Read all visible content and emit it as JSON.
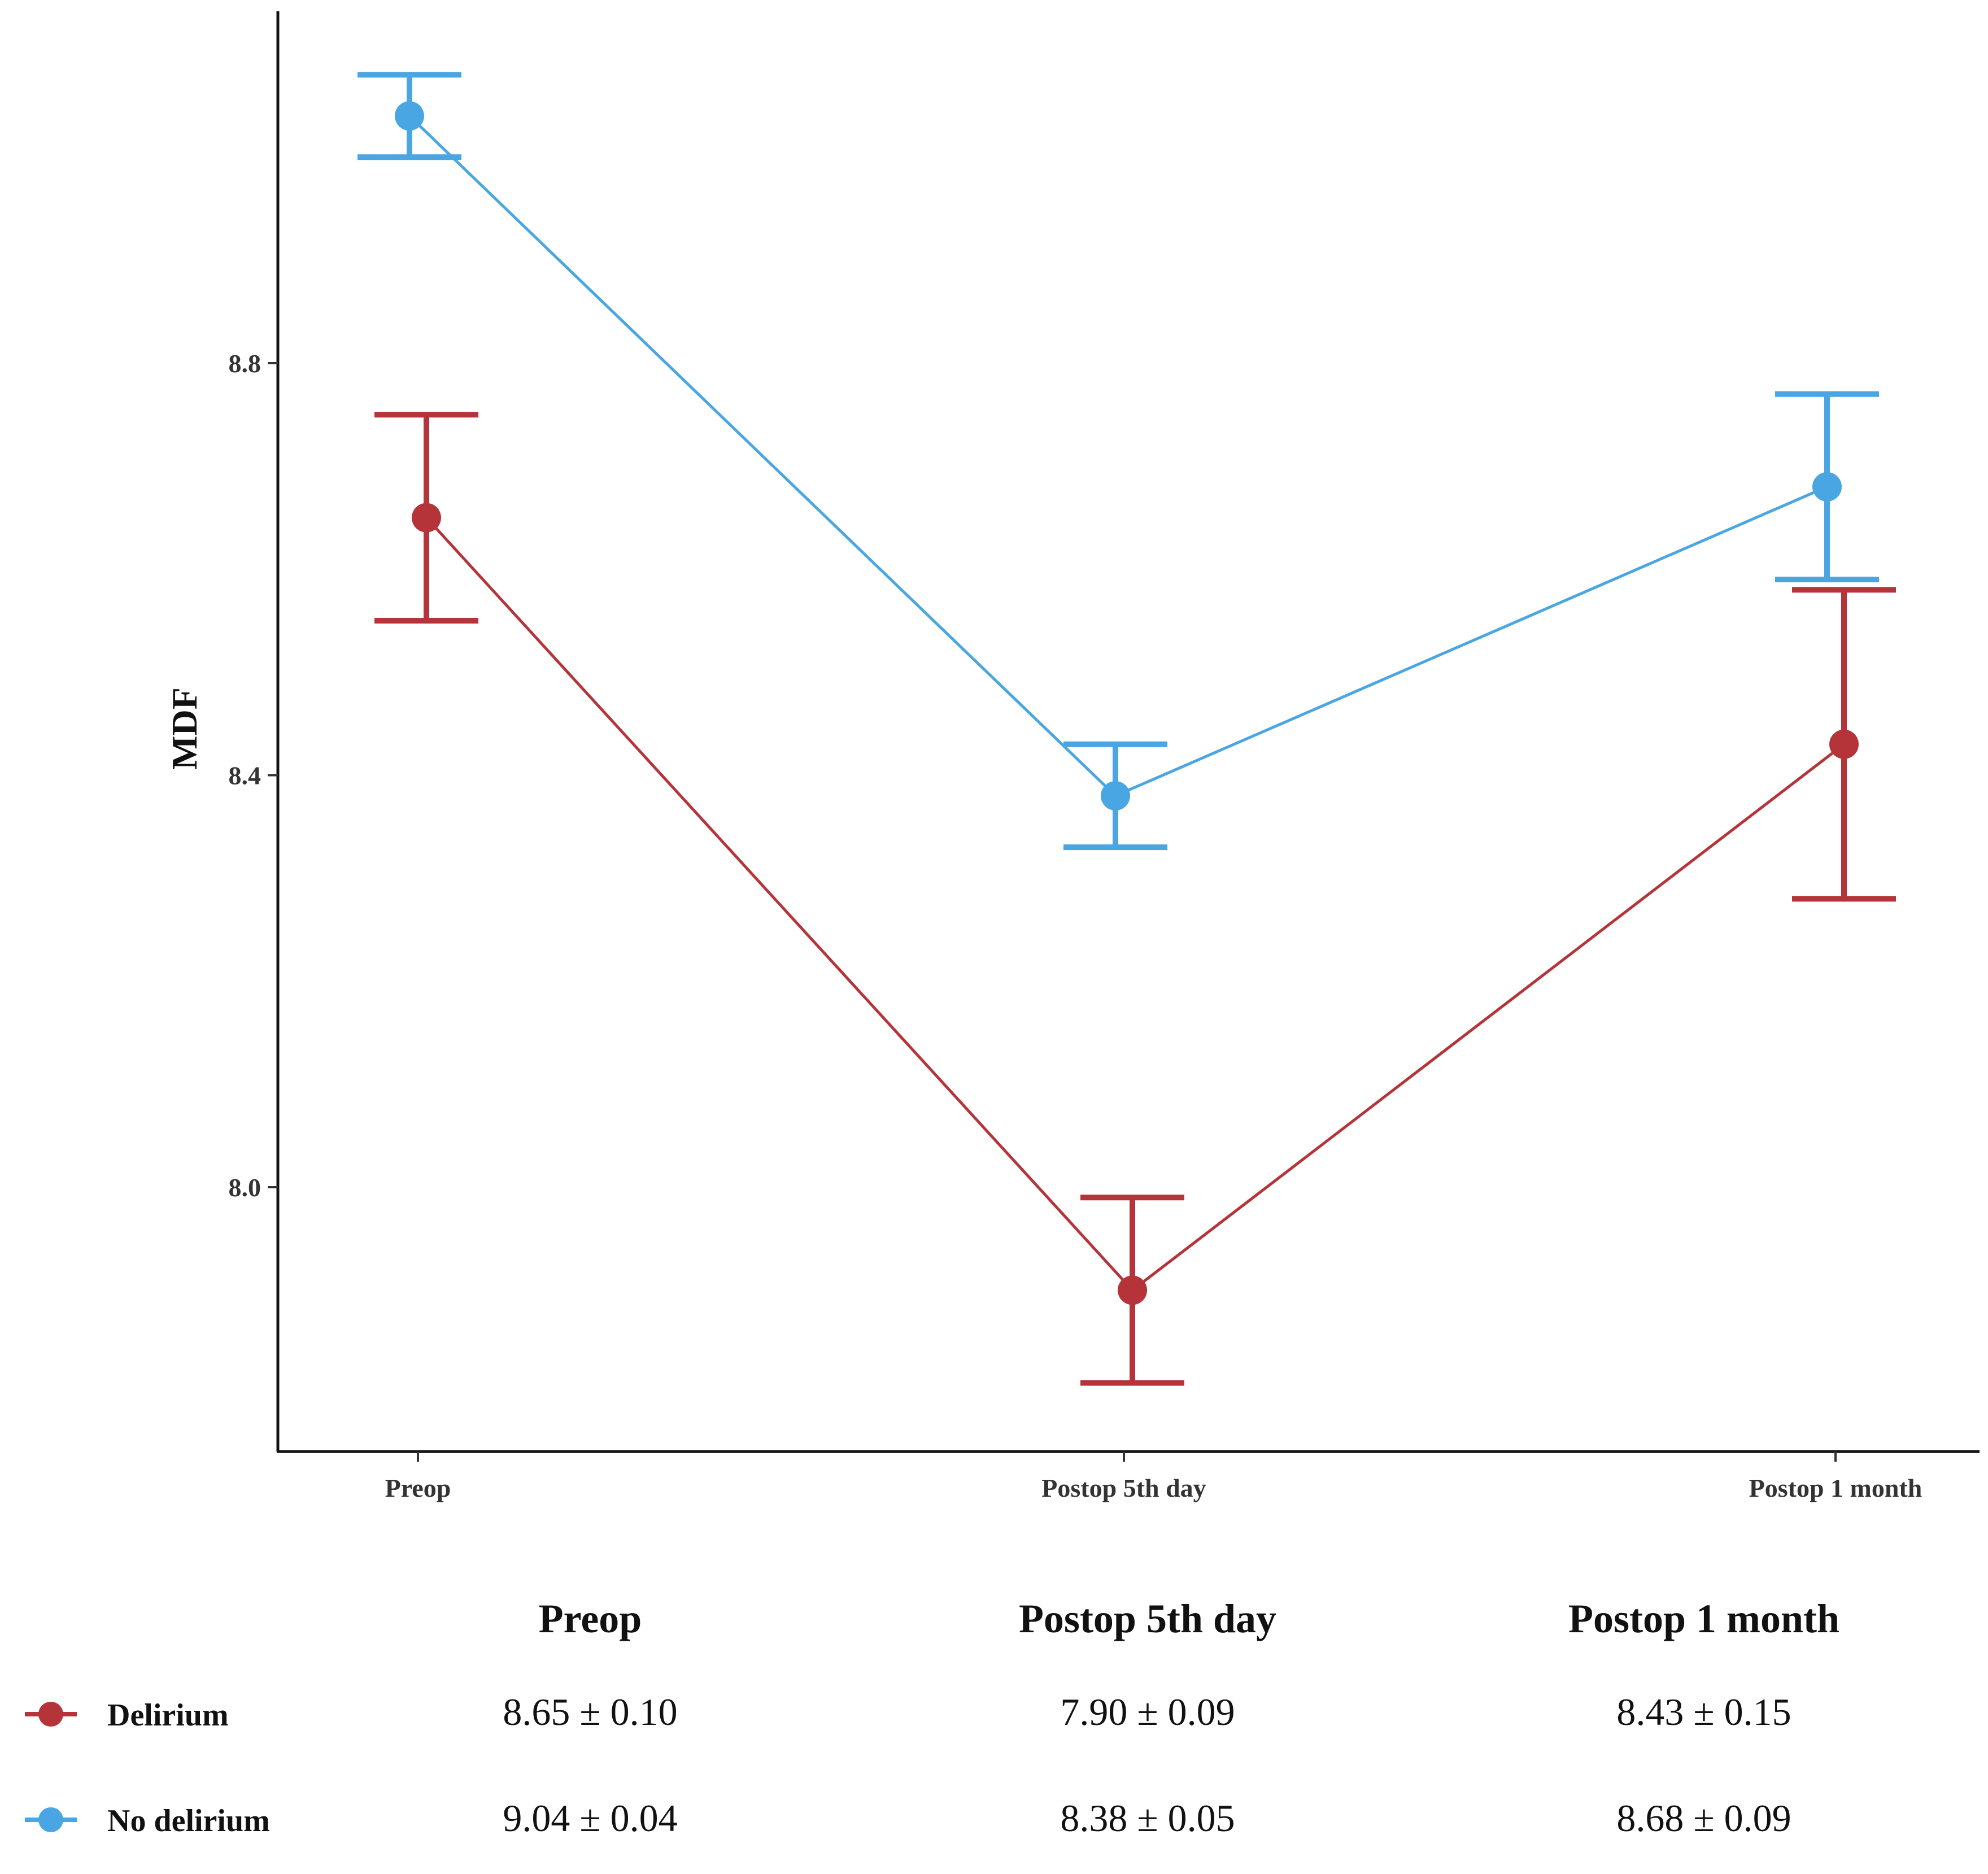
{
  "chart_data": {
    "type": "line",
    "title": "",
    "xlabel": "",
    "ylabel": "MDF",
    "categories": [
      "Preop",
      "Postop 5th day",
      "Postop 1 month"
    ],
    "ylim": [
      7.75,
      9.15
    ],
    "yticks": [
      8.0,
      8.4,
      8.8
    ],
    "ytick_labels": [
      "8.0",
      "8.4",
      "8.8"
    ],
    "grid": false,
    "legend_position": "bottom-left",
    "series": [
      {
        "name": "Delirium",
        "color": "#b5343a",
        "values": [
          8.65,
          7.9,
          8.43
        ],
        "errors": [
          0.1,
          0.09,
          0.15
        ]
      },
      {
        "name": "No delirium",
        "color": "#4aa6e2",
        "values": [
          9.04,
          8.38,
          8.68
        ],
        "errors": [
          0.04,
          0.05,
          0.09
        ]
      }
    ]
  },
  "summary_table": {
    "headers": [
      "Preop",
      "Postop 5th day",
      "Postop 1 month"
    ],
    "rows": [
      {
        "label": "Delirium",
        "cells": [
          "8.65 ± 0.10",
          "7.90 ± 0.09",
          "8.43 ± 0.15"
        ]
      },
      {
        "label": "No delirium",
        "cells": [
          "9.04 ± 0.04",
          "8.38 ± 0.05",
          "8.68 ± 0.09"
        ]
      }
    ]
  }
}
